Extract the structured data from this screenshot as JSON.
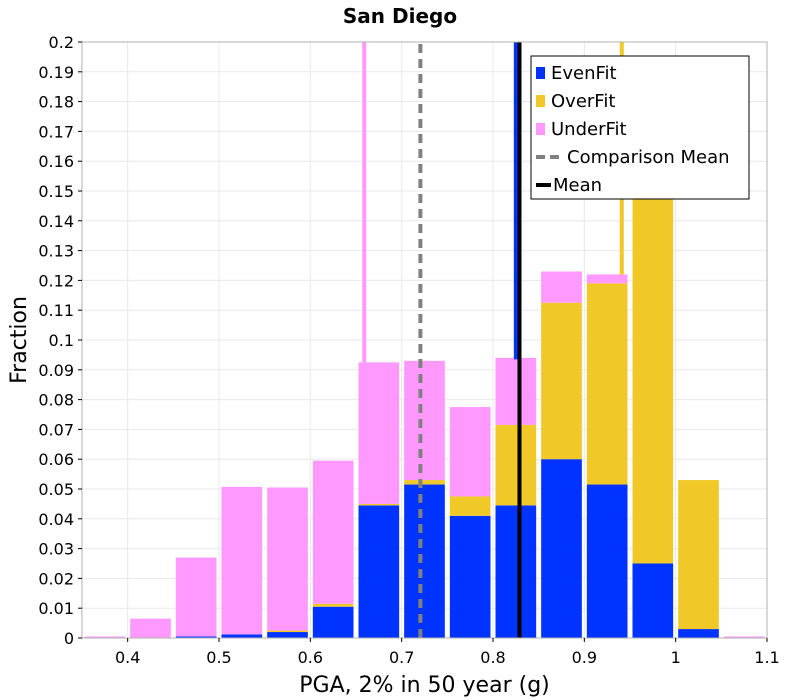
{
  "chart_data": {
    "type": "bar",
    "stacked": true,
    "title": "San Diego",
    "xlabel": "PGA, 2% in 50 year (g)",
    "ylabel": "Fraction",
    "xlim": [
      0.35,
      1.1
    ],
    "ylim": [
      0,
      0.2
    ],
    "bin_width": 0.05,
    "x_ticks": [
      0.4,
      0.5,
      0.6,
      0.7,
      0.8,
      0.9,
      1,
      1.1
    ],
    "x_tick_labels": [
      "0.4",
      "0.5",
      "0.6",
      "0.7",
      "0.8",
      "0.9",
      "1",
      "1.1"
    ],
    "y_ticks": [
      0,
      0.01,
      0.02,
      0.03,
      0.04,
      0.05,
      0.06,
      0.07,
      0.08,
      0.09,
      0.1,
      0.11,
      0.12,
      0.13,
      0.14,
      0.15,
      0.16,
      0.17,
      0.18,
      0.19,
      0.2
    ],
    "y_tick_labels": [
      "0",
      "0.01",
      "0.02",
      "0.03",
      "0.04",
      "0.05",
      "0.06",
      "0.07",
      "0.08",
      "0.09",
      "0.1",
      "0.11",
      "0.12",
      "0.13",
      "0.14",
      "0.15",
      "0.16",
      "0.17",
      "0.18",
      "0.19",
      "0.2"
    ],
    "bin_centers": [
      0.375,
      0.425,
      0.475,
      0.525,
      0.575,
      0.625,
      0.675,
      0.725,
      0.775,
      0.825,
      0.875,
      0.925,
      0.975,
      1.025,
      1.075
    ],
    "series": [
      {
        "name": "EvenFit",
        "color": "#0033ff",
        "values": [
          0,
          0,
          0.0005,
          0.0012,
          0.002,
          0.0105,
          0.0445,
          0.0515,
          0.041,
          0.0445,
          0.06,
          0.0515,
          0.025,
          0.003,
          0
        ]
      },
      {
        "name": "OverFit",
        "color": "#f0c929",
        "values": [
          0,
          0,
          0,
          0,
          0.0005,
          0.001,
          0.0005,
          0.0015,
          0.0065,
          0.027,
          0.0525,
          0.0675,
          0.1245,
          0.05,
          0
        ]
      },
      {
        "name": "UnderFit",
        "color": "#ff99ff",
        "values": [
          0.0005,
          0.0065,
          0.0265,
          0.0495,
          0.048,
          0.048,
          0.0475,
          0.04,
          0.03,
          0.0225,
          0.0105,
          0.003,
          0.0025,
          0,
          0.0005
        ]
      }
    ],
    "vertical_lines": [
      {
        "name": "UnderFit mean",
        "x": 0.659,
        "color": "#ff99ff",
        "style": "solid",
        "y_from": 0.0925
      },
      {
        "name": "Comparison Mean",
        "x": 0.7205,
        "color": "#808080",
        "style": "dashed",
        "y_from": 0
      },
      {
        "name": "EvenFit mean",
        "x": 0.825,
        "color": "#0033ff",
        "style": "solid",
        "y_from": 0.0935
      },
      {
        "name": "Mean",
        "x": 0.829,
        "color": "#000000",
        "style": "solid",
        "y_from": 0
      },
      {
        "name": "OverFit mean",
        "x": 0.941,
        "color": "#f0c929",
        "style": "solid",
        "y_from": 0.122
      }
    ],
    "legend": {
      "position": "top-right",
      "entries": [
        {
          "label": "EvenFit",
          "kind": "patch",
          "color": "#0033ff"
        },
        {
          "label": "OverFit",
          "kind": "patch",
          "color": "#f0c929"
        },
        {
          "label": "UnderFit",
          "kind": "patch",
          "color": "#ff99ff"
        },
        {
          "label": "Comparison Mean",
          "kind": "dashed-line",
          "color": "#808080"
        },
        {
          "label": "Mean",
          "kind": "solid-line",
          "color": "#000000"
        }
      ]
    },
    "grid": true
  }
}
